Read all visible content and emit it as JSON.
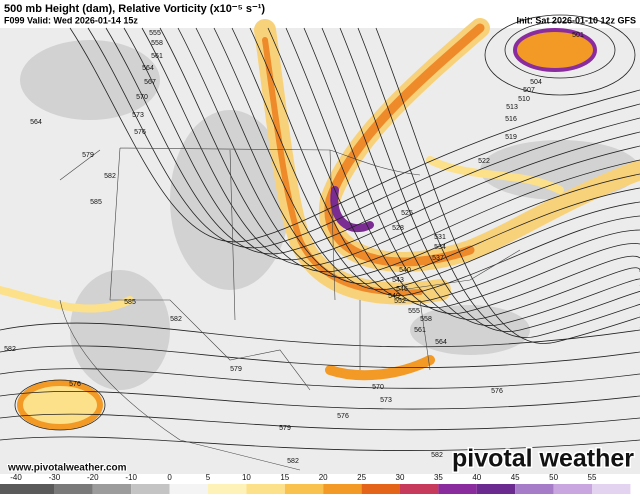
{
  "header": {
    "title": "500 mb Height (dam), Relative Vorticity (x10⁻⁵ s⁻¹)",
    "valid": "F099 Valid: Wed 2026-01-14 15z",
    "init": "Init: Sat 2026-01-10 12z GFS"
  },
  "contour_labels": [
    "555",
    "558",
    "561",
    "564",
    "567",
    "570",
    "573",
    "576",
    "579",
    "582",
    "585",
    "585",
    "582",
    "582",
    "576",
    "579",
    "576",
    "579",
    "582",
    "582",
    "576",
    "573",
    "570",
    "564",
    "561",
    "558",
    "555",
    "552",
    "549",
    "546",
    "543",
    "540",
    "537",
    "534",
    "531",
    "528",
    "525",
    "522",
    "519",
    "516",
    "513",
    "510",
    "507",
    "504",
    "501",
    "564"
  ],
  "footer": {
    "url": "www.pivotalweather.com",
    "logo": "pivotal weather"
  },
  "colorbar": {
    "ticks": [
      -40,
      -30,
      -20,
      -10,
      0,
      5,
      10,
      15,
      20,
      25,
      30,
      35,
      40,
      45,
      50,
      55
    ]
  }
}
